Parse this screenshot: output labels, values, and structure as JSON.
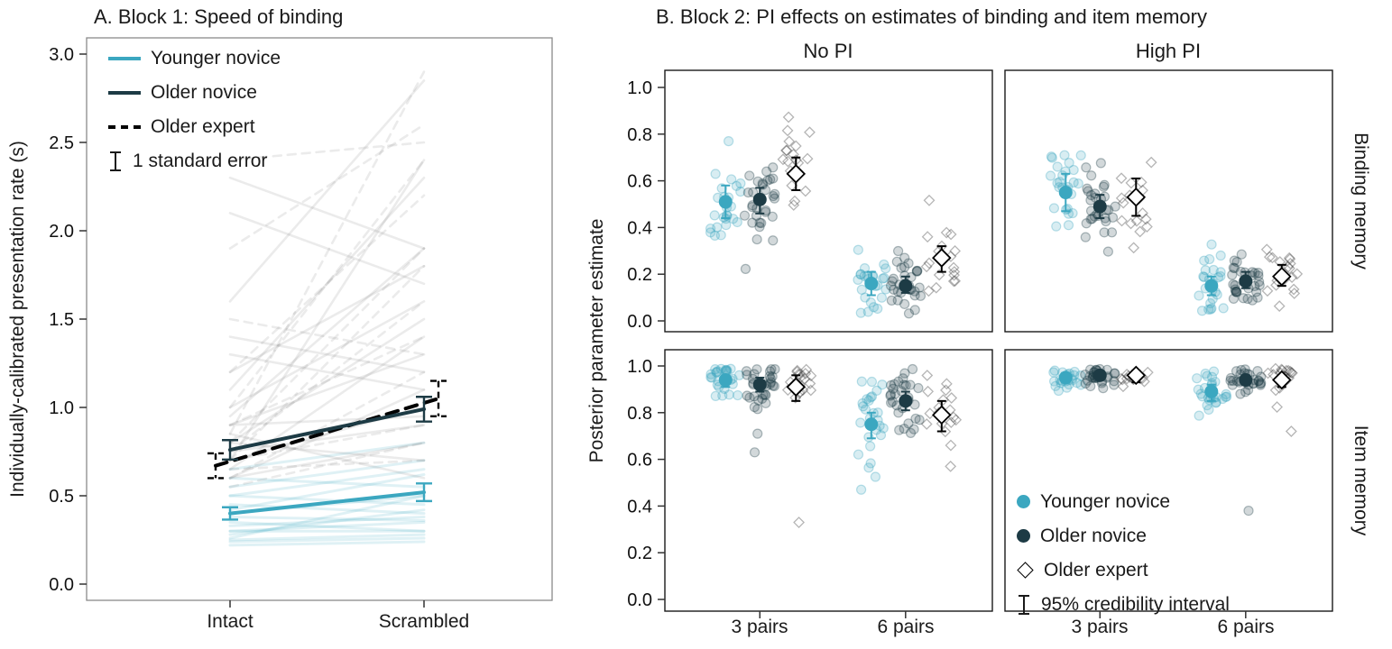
{
  "colors": {
    "younger": "#3ba7c0",
    "older_novice": "#1d3b45",
    "expert": "#000000"
  },
  "chart_data": [
    {
      "type": "line",
      "id": "panel_a",
      "title": "A. Block 1: Speed of binding",
      "ylabel": "Individually-calibrated presentation rate (s)",
      "x_categories": [
        "Intact",
        "Scrambled"
      ],
      "yticks": [
        "0.0",
        "0.5",
        "1.0",
        "1.5",
        "2.0",
        "2.5",
        "3.0"
      ],
      "ylim": [
        -0.1,
        3.1
      ],
      "grid": false,
      "legend": {
        "position": "top-left-inside",
        "error_label": "1 standard error"
      },
      "series": [
        {
          "name": "Younger novice",
          "color_key": "younger",
          "dash": "solid",
          "values": [
            0.4,
            0.52
          ],
          "se": [
            0.035,
            0.05
          ]
        },
        {
          "name": "Older novice",
          "color_key": "older_novice",
          "dash": "solid",
          "values": [
            0.76,
            0.99
          ],
          "se": [
            0.055,
            0.07
          ]
        },
        {
          "name": "Older expert",
          "color_key": "expert",
          "dash": "dashed",
          "values": [
            0.67,
            1.05
          ],
          "se": [
            0.07,
            0.1
          ]
        }
      ],
      "individual_lines": [
        [
          0.25,
          0.28,
          "younger"
        ],
        [
          0.3,
          0.35,
          "younger"
        ],
        [
          0.22,
          0.24,
          "younger"
        ],
        [
          0.4,
          0.5,
          "younger"
        ],
        [
          0.35,
          0.3,
          "younger"
        ],
        [
          0.5,
          0.65,
          "younger"
        ],
        [
          0.28,
          0.42,
          "younger"
        ],
        [
          0.45,
          0.4,
          "younger"
        ],
        [
          0.6,
          0.55,
          "younger"
        ],
        [
          0.33,
          0.38,
          "younger"
        ],
        [
          0.26,
          0.5,
          "younger"
        ],
        [
          0.55,
          0.7,
          "younger"
        ],
        [
          0.38,
          0.36,
          "younger"
        ],
        [
          0.42,
          0.62,
          "younger"
        ],
        [
          0.3,
          0.3,
          "younger"
        ],
        [
          0.24,
          0.26,
          "younger"
        ],
        [
          0.65,
          0.8,
          "younger"
        ],
        [
          0.5,
          0.45,
          "younger"
        ],
        [
          0.7,
          1.0,
          "older"
        ],
        [
          0.9,
          1.3,
          "older"
        ],
        [
          0.6,
          0.8,
          "older"
        ],
        [
          1.2,
          1.8,
          "older"
        ],
        [
          0.8,
          0.7,
          "older"
        ],
        [
          1.0,
          1.6,
          "older"
        ],
        [
          0.75,
          0.9,
          "older"
        ],
        [
          1.4,
          1.2,
          "older"
        ],
        [
          0.65,
          1.4,
          "older"
        ],
        [
          0.9,
          0.95,
          "older"
        ],
        [
          1.1,
          2.3,
          "older"
        ],
        [
          0.8,
          1.5,
          "older"
        ],
        [
          2.1,
          1.7,
          "older"
        ],
        [
          0.7,
          2.4,
          "older"
        ],
        [
          1.3,
          1.1,
          "older"
        ],
        [
          0.95,
          1.9,
          "older"
        ],
        [
          0.6,
          1.1,
          "older"
        ],
        [
          1.6,
          2.85,
          "older"
        ],
        [
          0.85,
          0.6,
          "older"
        ],
        [
          2.3,
          1.9,
          "older"
        ],
        [
          0.6,
          1.2,
          "expert"
        ],
        [
          0.8,
          1.9,
          "expert"
        ],
        [
          0.7,
          0.9,
          "expert"
        ],
        [
          1.0,
          2.4,
          "expert"
        ],
        [
          0.9,
          1.4,
          "expert"
        ],
        [
          0.65,
          0.7,
          "expert"
        ],
        [
          1.9,
          2.6,
          "expert"
        ],
        [
          0.75,
          1.6,
          "expert"
        ],
        [
          1.2,
          2.2,
          "expert"
        ],
        [
          0.55,
          0.8,
          "expert"
        ],
        [
          0.85,
          2.9,
          "expert"
        ],
        [
          1.5,
          1.3,
          "expert"
        ],
        [
          0.7,
          1.8,
          "expert"
        ],
        [
          2.4,
          2.5,
          "expert"
        ]
      ]
    },
    {
      "type": "scatter",
      "id": "panel_b",
      "title": "B. Block 2: PI effects on estimates of binding and item memory",
      "ylabel": "Posterior parameter estimate",
      "col_labels": [
        "No PI",
        "High PI"
      ],
      "row_labels": [
        "Binding memory",
        "Item memory"
      ],
      "x_categories": [
        "3 pairs",
        "6 pairs"
      ],
      "yticks": [
        "0.0",
        "0.2",
        "0.4",
        "0.6",
        "0.8",
        "1.0"
      ],
      "ylim": [
        -0.05,
        1.07
      ],
      "grid": false,
      "groups": [
        {
          "name": "Younger novice",
          "marker": "circle-filled",
          "color_key": "younger"
        },
        {
          "name": "Older novice",
          "marker": "circle-filled",
          "color_key": "older_novice"
        },
        {
          "name": "Older expert",
          "marker": "diamond-open",
          "color_key": "expert"
        }
      ],
      "legend": {
        "position": "bottom-right-facet",
        "error_label": "95% credibility interval"
      },
      "estimates": [
        {
          "row": 0,
          "col": 0,
          "x": 0,
          "group": 0,
          "mean": 0.51,
          "ci": [
            0.44,
            0.58
          ],
          "sd": 0.1,
          "n": 26
        },
        {
          "row": 0,
          "col": 0,
          "x": 0,
          "group": 1,
          "mean": 0.52,
          "ci": [
            0.46,
            0.57
          ],
          "sd": 0.11,
          "n": 30
        },
        {
          "row": 0,
          "col": 0,
          "x": 0,
          "group": 2,
          "mean": 0.63,
          "ci": [
            0.56,
            0.7
          ],
          "sd": 0.1,
          "n": 18
        },
        {
          "row": 0,
          "col": 0,
          "x": 1,
          "group": 0,
          "mean": 0.16,
          "ci": [
            0.11,
            0.21
          ],
          "sd": 0.08,
          "n": 26
        },
        {
          "row": 0,
          "col": 0,
          "x": 1,
          "group": 1,
          "mean": 0.15,
          "ci": [
            0.12,
            0.19
          ],
          "sd": 0.06,
          "n": 30
        },
        {
          "row": 0,
          "col": 0,
          "x": 1,
          "group": 2,
          "mean": 0.27,
          "ci": [
            0.21,
            0.32
          ],
          "sd": 0.09,
          "n": 18
        },
        {
          "row": 0,
          "col": 1,
          "x": 0,
          "group": 0,
          "mean": 0.55,
          "ci": [
            0.47,
            0.63
          ],
          "sd": 0.12,
          "n": 26
        },
        {
          "row": 0,
          "col": 1,
          "x": 0,
          "group": 1,
          "mean": 0.49,
          "ci": [
            0.44,
            0.54
          ],
          "sd": 0.1,
          "n": 30
        },
        {
          "row": 0,
          "col": 1,
          "x": 0,
          "group": 2,
          "mean": 0.53,
          "ci": [
            0.45,
            0.61
          ],
          "sd": 0.12,
          "n": 18
        },
        {
          "row": 0,
          "col": 1,
          "x": 1,
          "group": 0,
          "mean": 0.15,
          "ci": [
            0.11,
            0.19
          ],
          "sd": 0.07,
          "n": 26
        },
        {
          "row": 0,
          "col": 1,
          "x": 1,
          "group": 1,
          "mean": 0.17,
          "ci": [
            0.14,
            0.21
          ],
          "sd": 0.06,
          "n": 30
        },
        {
          "row": 0,
          "col": 1,
          "x": 1,
          "group": 2,
          "mean": 0.19,
          "ci": [
            0.15,
            0.24
          ],
          "sd": 0.07,
          "n": 18
        },
        {
          "row": 1,
          "col": 0,
          "x": 0,
          "group": 0,
          "mean": 0.94,
          "ci": [
            0.91,
            0.96
          ],
          "sd": 0.05,
          "n": 26
        },
        {
          "row": 1,
          "col": 0,
          "x": 0,
          "group": 1,
          "mean": 0.92,
          "ci": [
            0.89,
            0.95
          ],
          "sd": 0.07,
          "n": 30,
          "extra": [
            0.63,
            0.71
          ]
        },
        {
          "row": 1,
          "col": 0,
          "x": 0,
          "group": 2,
          "mean": 0.91,
          "ci": [
            0.85,
            0.96
          ],
          "sd": 0.06,
          "n": 18,
          "extra": [
            0.33
          ]
        },
        {
          "row": 1,
          "col": 0,
          "x": 1,
          "group": 0,
          "mean": 0.75,
          "ci": [
            0.69,
            0.8
          ],
          "sd": 0.1,
          "n": 26,
          "extra": [
            0.47
          ]
        },
        {
          "row": 1,
          "col": 0,
          "x": 1,
          "group": 1,
          "mean": 0.85,
          "ci": [
            0.81,
            0.89
          ],
          "sd": 0.09,
          "n": 30
        },
        {
          "row": 1,
          "col": 0,
          "x": 1,
          "group": 2,
          "mean": 0.79,
          "ci": [
            0.72,
            0.85
          ],
          "sd": 0.1,
          "n": 18,
          "extra": [
            0.57
          ]
        },
        {
          "row": 1,
          "col": 1,
          "x": 0,
          "group": 0,
          "mean": 0.95,
          "ci": [
            0.93,
            0.97
          ],
          "sd": 0.03,
          "n": 26
        },
        {
          "row": 1,
          "col": 1,
          "x": 0,
          "group": 1,
          "mean": 0.96,
          "ci": [
            0.94,
            0.97
          ],
          "sd": 0.03,
          "n": 30
        },
        {
          "row": 1,
          "col": 1,
          "x": 0,
          "group": 2,
          "mean": 0.96,
          "ci": [
            0.93,
            0.98
          ],
          "sd": 0.03,
          "n": 18
        },
        {
          "row": 1,
          "col": 1,
          "x": 1,
          "group": 0,
          "mean": 0.89,
          "ci": [
            0.85,
            0.92
          ],
          "sd": 0.06,
          "n": 26
        },
        {
          "row": 1,
          "col": 1,
          "x": 1,
          "group": 1,
          "mean": 0.94,
          "ci": [
            0.92,
            0.96
          ],
          "sd": 0.04,
          "n": 30,
          "extra": [
            0.38
          ]
        },
        {
          "row": 1,
          "col": 1,
          "x": 1,
          "group": 2,
          "mean": 0.94,
          "ci": [
            0.91,
            0.96
          ],
          "sd": 0.05,
          "n": 18,
          "extra": [
            0.72
          ]
        }
      ]
    }
  ]
}
